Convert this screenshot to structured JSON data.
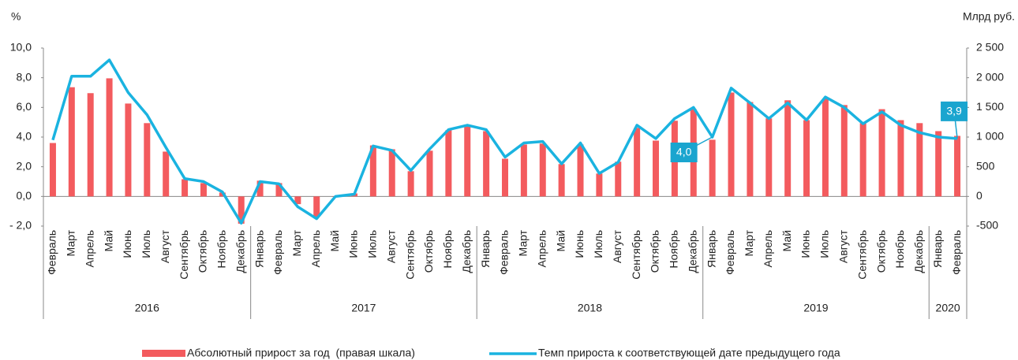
{
  "chart_data": {
    "type": "combo",
    "ylabel": "%",
    "y2label": "Млрд руб.",
    "groups": [
      {
        "label": "2016",
        "categories": [
          "Февраль",
          "Март",
          "Апрель",
          "Май",
          "Июнь",
          "Июль",
          "Август",
          "Сентябрь",
          "Октябрь",
          "Ноябрь",
          "Декабрь"
        ]
      },
      {
        "label": "2017",
        "categories": [
          "Январь",
          "Февраль",
          "Март",
          "Апрель",
          "Май",
          "Июнь",
          "Июль",
          "Август",
          "Сентябрь",
          "Октябрь",
          "Ноябрь",
          "Декабрь"
        ]
      },
      {
        "label": "2018",
        "categories": [
          "Январь",
          "Февраль",
          "Март",
          "Апрель",
          "Май",
          "Июнь",
          "Июль",
          "Август",
          "Сентябрь",
          "Октябрь",
          "Ноябрь",
          "Декабрь"
        ]
      },
      {
        "label": "2019",
        "categories": [
          "Январь",
          "Февраль",
          "Март",
          "Апрель",
          "Май",
          "Июнь",
          "Июль",
          "Август",
          "Сентябрь",
          "Октябрь",
          "Ноябрь",
          "Декабрь"
        ]
      },
      {
        "label": "2020",
        "categories": [
          "Январь",
          "Февраль"
        ]
      }
    ],
    "ylim": [
      -2,
      10
    ],
    "yticks": [
      {
        "value": -2,
        "label": "- 2,0"
      },
      {
        "value": 0,
        "label": "0,0"
      },
      {
        "value": 2,
        "label": "2,0"
      },
      {
        "value": 4,
        "label": "4,0"
      },
      {
        "value": 6,
        "label": "6,0"
      },
      {
        "value": 8,
        "label": "8,0"
      },
      {
        "value": 10,
        "label": "10,0"
      }
    ],
    "y2lim": [
      -500,
      2500
    ],
    "y2ticks": [
      -500,
      0,
      500,
      {
        "value": 1000,
        "label": "1 000"
      },
      {
        "value": 1500,
        "label": "1 500"
      },
      {
        "value": 2000,
        "label": "2 000"
      },
      {
        "value": 2500,
        "label": "2 500"
      }
    ],
    "series": [
      {
        "name": "Абсолютный прирост за год  (правая шкала)",
        "type": "bar",
        "axis": "y2",
        "color": "#f35b5e",
        "values": [
          900,
          1840,
          1740,
          1990,
          1565,
          1235,
          755,
          290,
          225,
          65,
          -460,
          265,
          225,
          -130,
          -345,
          0,
          50,
          860,
          795,
          425,
          770,
          1115,
          1180,
          1100,
          635,
          875,
          890,
          545,
          875,
          385,
          585,
          1155,
          940,
          1275,
          1470,
          955,
          1750,
          1590,
          1315,
          1620,
          1285,
          1645,
          1540,
          1235,
          1470,
          1285,
          1235,
          1100,
          1020
        ]
      },
      {
        "name": "Темп прироста к соответствующей дате предыдущего года",
        "type": "line",
        "color": "#1ab3e0",
        "values": [
          3.8,
          8.1,
          8.1,
          9.2,
          7.0,
          5.5,
          3.3,
          1.2,
          1.0,
          0.3,
          -1.8,
          1.0,
          0.85,
          -0.7,
          -1.5,
          0.0,
          0.15,
          3.4,
          3.1,
          1.75,
          3.2,
          4.5,
          4.8,
          4.5,
          2.65,
          3.6,
          3.7,
          2.2,
          3.6,
          1.55,
          2.3,
          4.8,
          3.9,
          5.25,
          6.0,
          4.0,
          7.3,
          6.3,
          5.25,
          6.3,
          5.15,
          6.7,
          6.0,
          4.9,
          5.7,
          4.8,
          4.3,
          4.0,
          3.9
        ],
        "value_labels": [
          null,
          null,
          null,
          null,
          null,
          null,
          null,
          null,
          null,
          null,
          null,
          null,
          null,
          null,
          null,
          null,
          null,
          null,
          null,
          null,
          null,
          null,
          null,
          null,
          null,
          null,
          null,
          null,
          null,
          null,
          null,
          null,
          null,
          null,
          null,
          "4,0",
          null,
          null,
          null,
          null,
          null,
          null,
          null,
          null,
          null,
          null,
          null,
          null,
          "3,9"
        ]
      }
    ]
  }
}
